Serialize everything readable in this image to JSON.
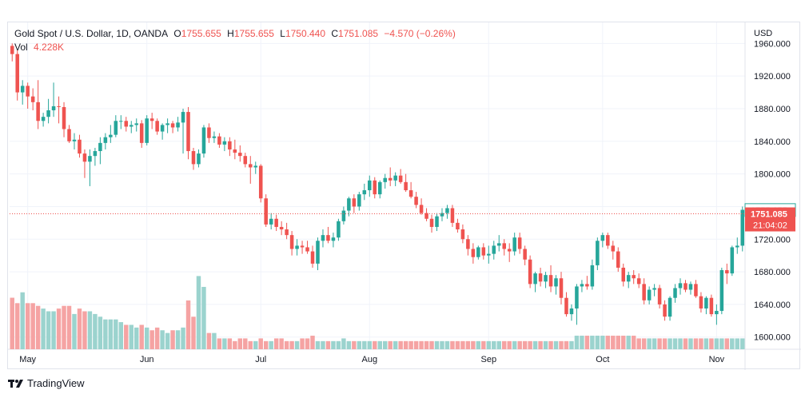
{
  "header": {
    "symbol": "Gold Spot / U.S. Dollar, 1D, OANDA",
    "o_label": "O",
    "o_value": "1755.655",
    "h_label": "H",
    "h_value": "1755.655",
    "l_label": "L",
    "l_value": "1750.440",
    "c_label": "C",
    "c_value": "1751.085",
    "change": "−4.570 (−0.26%)",
    "vol_label": "Vol",
    "vol_value": "4.228K"
  },
  "footer": {
    "brand": "TradingView"
  },
  "colors": {
    "up": "#26a69a",
    "down": "#ef5350",
    "vol_up": "#9bd3ce",
    "vol_down": "#f5a3a3",
    "grid": "#f0f3fa",
    "axis_text": "#131722"
  },
  "chart_data": {
    "type": "candlestick",
    "currency": "USD",
    "y_ticks": [
      "1960.000",
      "1920.000",
      "1880.000",
      "1840.000",
      "1800.000",
      "1760.000",
      "1720.000",
      "1680.000",
      "1640.000",
      "1600.000"
    ],
    "y_tick_values": [
      1960,
      1920,
      1880,
      1840,
      1800,
      1760,
      1720,
      1680,
      1640,
      1600
    ],
    "ylim": [
      1585,
      1978
    ],
    "x_ticks": [
      {
        "label": "May",
        "index": 3
      },
      {
        "label": "Jun",
        "index": 26
      },
      {
        "label": "Jul",
        "index": 48
      },
      {
        "label": "Aug",
        "index": 69
      },
      {
        "label": "Sep",
        "index": 92
      },
      {
        "label": "Oct",
        "index": 114
      },
      {
        "label": "Nov",
        "index": 136
      }
    ],
    "price_labels": {
      "open_marker": {
        "text": "1755.655",
        "value": 1755.655
      },
      "last": {
        "text": "1751.085",
        "value": 1751.085
      },
      "countdown": "21:04:02"
    },
    "candles": [
      [
        1957,
        1960,
        1938,
        1947
      ],
      [
        1947,
        1952,
        1890,
        1900
      ],
      [
        1900,
        1915,
        1885,
        1908
      ],
      [
        1908,
        1912,
        1880,
        1895
      ],
      [
        1895,
        1905,
        1878,
        1888
      ],
      [
        1888,
        1915,
        1855,
        1865
      ],
      [
        1865,
        1875,
        1858,
        1870
      ],
      [
        1870,
        1892,
        1862,
        1878
      ],
      [
        1878,
        1912,
        1870,
        1883
      ],
      [
        1883,
        1895,
        1862,
        1882
      ],
      [
        1882,
        1888,
        1845,
        1855
      ],
      [
        1855,
        1860,
        1838,
        1840
      ],
      [
        1840,
        1850,
        1830,
        1842
      ],
      [
        1842,
        1848,
        1820,
        1825
      ],
      [
        1825,
        1830,
        1795,
        1815
      ],
      [
        1815,
        1830,
        1785,
        1822
      ],
      [
        1822,
        1832,
        1810,
        1828
      ],
      [
        1828,
        1845,
        1812,
        1838
      ],
      [
        1838,
        1850,
        1830,
        1845
      ],
      [
        1845,
        1860,
        1838,
        1848
      ],
      [
        1848,
        1872,
        1845,
        1865
      ],
      [
        1865,
        1872,
        1855,
        1865
      ],
      [
        1865,
        1870,
        1852,
        1858
      ],
      [
        1858,
        1865,
        1850,
        1860
      ],
      [
        1860,
        1868,
        1852,
        1862
      ],
      [
        1862,
        1866,
        1832,
        1838
      ],
      [
        1838,
        1872,
        1835,
        1868
      ],
      [
        1868,
        1875,
        1855,
        1865
      ],
      [
        1865,
        1868,
        1848,
        1852
      ],
      [
        1852,
        1862,
        1842,
        1860
      ],
      [
        1860,
        1868,
        1850,
        1862
      ],
      [
        1862,
        1865,
        1850,
        1857
      ],
      [
        1857,
        1870,
        1852,
        1863
      ],
      [
        1863,
        1880,
        1825,
        1876
      ],
      [
        1876,
        1882,
        1818,
        1828
      ],
      [
        1828,
        1832,
        1805,
        1812
      ],
      [
        1812,
        1830,
        1808,
        1825
      ],
      [
        1825,
        1860,
        1820,
        1857
      ],
      [
        1857,
        1862,
        1838,
        1844
      ],
      [
        1844,
        1852,
        1838,
        1846
      ],
      [
        1846,
        1850,
        1832,
        1836
      ],
      [
        1836,
        1845,
        1828,
        1840
      ],
      [
        1840,
        1845,
        1822,
        1830
      ],
      [
        1830,
        1842,
        1818,
        1826
      ],
      [
        1826,
        1835,
        1815,
        1822
      ],
      [
        1822,
        1826,
        1808,
        1812
      ],
      [
        1812,
        1822,
        1788,
        1808
      ],
      [
        1808,
        1815,
        1800,
        1810
      ],
      [
        1810,
        1812,
        1765,
        1770
      ],
      [
        1770,
        1775,
        1735,
        1738
      ],
      [
        1738,
        1752,
        1732,
        1745
      ],
      [
        1745,
        1750,
        1730,
        1735
      ],
      [
        1735,
        1742,
        1725,
        1732
      ],
      [
        1732,
        1740,
        1720,
        1725
      ],
      [
        1725,
        1730,
        1700,
        1708
      ],
      [
        1708,
        1720,
        1700,
        1712
      ],
      [
        1712,
        1718,
        1702,
        1710
      ],
      [
        1710,
        1718,
        1702,
        1705
      ],
      [
        1705,
        1712,
        1685,
        1690
      ],
      [
        1690,
        1722,
        1682,
        1718
      ],
      [
        1718,
        1732,
        1710,
        1725
      ],
      [
        1725,
        1735,
        1715,
        1718
      ],
      [
        1718,
        1728,
        1710,
        1722
      ],
      [
        1722,
        1745,
        1718,
        1742
      ],
      [
        1742,
        1760,
        1738,
        1755
      ],
      [
        1755,
        1772,
        1748,
        1770
      ],
      [
        1770,
        1775,
        1752,
        1760
      ],
      [
        1760,
        1778,
        1755,
        1775
      ],
      [
        1775,
        1788,
        1768,
        1780
      ],
      [
        1780,
        1798,
        1772,
        1792
      ],
      [
        1792,
        1796,
        1770,
        1775
      ],
      [
        1775,
        1792,
        1770,
        1790
      ],
      [
        1790,
        1800,
        1782,
        1795
      ],
      [
        1795,
        1808,
        1785,
        1792
      ],
      [
        1792,
        1802,
        1785,
        1798
      ],
      [
        1798,
        1806,
        1788,
        1790
      ],
      [
        1790,
        1800,
        1778,
        1780
      ],
      [
        1780,
        1790,
        1770,
        1772
      ],
      [
        1772,
        1778,
        1758,
        1762
      ],
      [
        1762,
        1770,
        1750,
        1752
      ],
      [
        1752,
        1758,
        1742,
        1745
      ],
      [
        1745,
        1750,
        1728,
        1735
      ],
      [
        1735,
        1752,
        1730,
        1748
      ],
      [
        1748,
        1758,
        1742,
        1752
      ],
      [
        1752,
        1762,
        1745,
        1758
      ],
      [
        1758,
        1762,
        1735,
        1740
      ],
      [
        1740,
        1745,
        1728,
        1732
      ],
      [
        1732,
        1738,
        1715,
        1720
      ],
      [
        1720,
        1725,
        1700,
        1708
      ],
      [
        1708,
        1715,
        1690,
        1698
      ],
      [
        1698,
        1712,
        1695,
        1710
      ],
      [
        1710,
        1715,
        1695,
        1700
      ],
      [
        1700,
        1712,
        1690,
        1702
      ],
      [
        1702,
        1718,
        1695,
        1712
      ],
      [
        1712,
        1725,
        1705,
        1715
      ],
      [
        1715,
        1720,
        1700,
        1708
      ],
      [
        1708,
        1715,
        1692,
        1705
      ],
      [
        1705,
        1728,
        1700,
        1722
      ],
      [
        1722,
        1728,
        1702,
        1708
      ],
      [
        1708,
        1712,
        1688,
        1695
      ],
      [
        1695,
        1700,
        1660,
        1665
      ],
      [
        1665,
        1680,
        1655,
        1678
      ],
      [
        1678,
        1685,
        1662,
        1668
      ],
      [
        1668,
        1680,
        1660,
        1676
      ],
      [
        1676,
        1688,
        1655,
        1662
      ],
      [
        1662,
        1676,
        1652,
        1672
      ],
      [
        1672,
        1680,
        1640,
        1648
      ],
      [
        1648,
        1655,
        1625,
        1628
      ],
      [
        1628,
        1640,
        1620,
        1635
      ],
      [
        1635,
        1665,
        1615,
        1662
      ],
      [
        1662,
        1670,
        1655,
        1665
      ],
      [
        1665,
        1675,
        1658,
        1662
      ],
      [
        1662,
        1695,
        1658,
        1688
      ],
      [
        1688,
        1722,
        1682,
        1718
      ],
      [
        1718,
        1728,
        1710,
        1725
      ],
      [
        1725,
        1728,
        1708,
        1712
      ],
      [
        1712,
        1718,
        1695,
        1705
      ],
      [
        1705,
        1710,
        1680,
        1685
      ],
      [
        1685,
        1690,
        1662,
        1668
      ],
      [
        1668,
        1680,
        1660,
        1676
      ],
      [
        1676,
        1682,
        1665,
        1672
      ],
      [
        1672,
        1678,
        1660,
        1665
      ],
      [
        1665,
        1672,
        1640,
        1645
      ],
      [
        1645,
        1662,
        1640,
        1658
      ],
      [
        1658,
        1665,
        1650,
        1660
      ],
      [
        1660,
        1664,
        1635,
        1640
      ],
      [
        1640,
        1645,
        1620,
        1625
      ],
      [
        1625,
        1650,
        1620,
        1648
      ],
      [
        1648,
        1665,
        1642,
        1660
      ],
      [
        1660,
        1672,
        1652,
        1666
      ],
      [
        1666,
        1670,
        1655,
        1658
      ],
      [
        1658,
        1668,
        1652,
        1665
      ],
      [
        1665,
        1670,
        1648,
        1650
      ],
      [
        1650,
        1655,
        1630,
        1635
      ],
      [
        1635,
        1650,
        1628,
        1648
      ],
      [
        1648,
        1652,
        1625,
        1628
      ],
      [
        1628,
        1640,
        1615,
        1632
      ],
      [
        1632,
        1685,
        1628,
        1682
      ],
      [
        1682,
        1690,
        1665,
        1678
      ],
      [
        1678,
        1712,
        1675,
        1710
      ],
      [
        1710,
        1722,
        1702,
        1712
      ],
      [
        1712,
        1760,
        1705,
        1756
      ]
    ],
    "volume": [
      95,
      85,
      105,
      85,
      85,
      80,
      75,
      70,
      70,
      75,
      80,
      80,
      65,
      75,
      70,
      70,
      65,
      60,
      55,
      55,
      55,
      50,
      45,
      45,
      40,
      45,
      40,
      35,
      40,
      35,
      30,
      35,
      35,
      40,
      90,
      60,
      135,
      115,
      30,
      30,
      20,
      20,
      20,
      15,
      20,
      20,
      15,
      15,
      20,
      15,
      15,
      20,
      20,
      15,
      15,
      15,
      20,
      20,
      25,
      15,
      15,
      15,
      15,
      15,
      20,
      15,
      15,
      15,
      15,
      15,
      15,
      15,
      15,
      15,
      15,
      15,
      15,
      15,
      15,
      15,
      15,
      15,
      15,
      15,
      15,
      15,
      15,
      15,
      15,
      15,
      15,
      15,
      15,
      15,
      15,
      15,
      15,
      15,
      15,
      15,
      15,
      15,
      15,
      15,
      15,
      15,
      15,
      15,
      15,
      25,
      25,
      25,
      25,
      25,
      25,
      25,
      25,
      25,
      25,
      25,
      25,
      20,
      20,
      20,
      20,
      20,
      20,
      20,
      20,
      20,
      20,
      20,
      20,
      20,
      20,
      20,
      20,
      20,
      20,
      20,
      20,
      20
    ]
  }
}
